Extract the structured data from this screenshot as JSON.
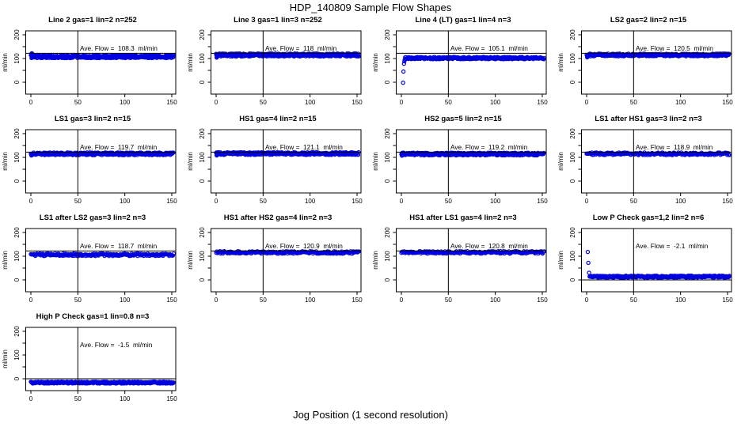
{
  "figure": {
    "title": "HDP_140809  Sample Flow Shapes",
    "xlabel": "Jog Position (1 second resolution)",
    "background": "#ffffff",
    "point_color": "#0000e0",
    "line_color": "#000000"
  },
  "axes": {
    "x_ticks": [
      0,
      50,
      100,
      150
    ],
    "y_ticks": [
      0,
      50,
      100,
      150,
      200
    ],
    "y_tick_labels": [
      0,
      100,
      200
    ],
    "xlim": [
      0,
      155
    ],
    "ylim": [
      -50,
      216
    ],
    "ylabel": "ml/min",
    "vline_x": 50
  },
  "chart_data": [
    {
      "type": "scatter",
      "title": "Line 2 gas=1 lin=2 n=252",
      "annotation": "Ave. Flow =  108.3  ml/min",
      "ave_flow": 108.3,
      "n": 252,
      "hline": 122,
      "band": {
        "x_start": 0,
        "x_end": 152,
        "center": 108,
        "step": 0.35,
        "jitter": 1.9
      },
      "extra_points": [
        [
          0.6,
          119
        ],
        [
          1.0,
          122
        ],
        [
          1.4,
          120
        ],
        [
          1.8,
          117
        ],
        [
          2.2,
          114
        ]
      ]
    },
    {
      "type": "scatter",
      "title": "Line 3 gas=1 lin=3 n=252",
      "annotation": "Ave. Flow =  118  ml/min",
      "ave_flow": 118,
      "n": 252,
      "hline": 122,
      "band": {
        "x_start": 0,
        "x_end": 152,
        "center": 115,
        "step": 0.35,
        "jitter": 1.9
      },
      "extra_points": [
        [
          0.6,
          104
        ],
        [
          1.0,
          107
        ],
        [
          1.5,
          110
        ],
        [
          2.0,
          112
        ]
      ]
    },
    {
      "type": "scatter",
      "title": "Line 4 (LT) gas=1 lin=4 n=3",
      "annotation": "Ave. Flow =  105.1  ml/min",
      "ave_flow": 105.1,
      "n": 3,
      "hline": 122,
      "band": {
        "x_start": 4,
        "x_end": 152,
        "center": 102,
        "step": 0.5,
        "jitter": 1.5
      },
      "extra_points": [
        [
          1.8,
          -2
        ],
        [
          2.2,
          45
        ],
        [
          2.8,
          78
        ],
        [
          3.2,
          88
        ],
        [
          3.6,
          95
        ]
      ]
    },
    {
      "type": "scatter",
      "title": "LS2 gas=2 lin=2 n=15",
      "annotation": "Ave. Flow =  120.5  ml/min",
      "ave_flow": 120.5,
      "n": 15,
      "hline": 122,
      "band": {
        "x_start": 0,
        "x_end": 152,
        "center": 115,
        "step": 0.45,
        "jitter": 1.7
      },
      "extra_points": [
        [
          0.6,
          105
        ],
        [
          1.0,
          109
        ],
        [
          1.5,
          112
        ]
      ]
    },
    {
      "type": "scatter",
      "title": "LS1 gas=3 lin=2 n=15",
      "annotation": "Ave. Flow =  119.7  ml/min",
      "ave_flow": 119.7,
      "n": 15,
      "hline": 122,
      "band": {
        "x_start": 0,
        "x_end": 152,
        "center": 115,
        "step": 0.45,
        "jitter": 1.7
      },
      "extra_points": [
        [
          0.6,
          108
        ],
        [
          1.2,
          111
        ]
      ]
    },
    {
      "type": "scatter",
      "title": "HS1 gas=4 lin=2 n=15",
      "annotation": "Ave. Flow =  121.1  ml/min",
      "ave_flow": 121.1,
      "n": 15,
      "hline": 122,
      "band": {
        "x_start": 0,
        "x_end": 152,
        "center": 116,
        "step": 0.45,
        "jitter": 1.7
      },
      "extra_points": [
        [
          0.6,
          108
        ],
        [
          1.2,
          112
        ]
      ]
    },
    {
      "type": "scatter",
      "title": "HS2 gas=5 lin=2 n=15",
      "annotation": "Ave. Flow =  119.2  ml/min",
      "ave_flow": 119.2,
      "n": 15,
      "hline": 122,
      "band": {
        "x_start": 0,
        "x_end": 152,
        "center": 114,
        "step": 0.45,
        "jitter": 1.7
      },
      "extra_points": [
        [
          0.6,
          107
        ],
        [
          1.2,
          111
        ]
      ]
    },
    {
      "type": "scatter",
      "title": "LS1 after HS1 gas=3 lin=2 n=3",
      "annotation": "Ave. Flow =  118.9  ml/min",
      "ave_flow": 118.9,
      "n": 3,
      "hline": 122,
      "band": {
        "x_start": 0,
        "x_end": 152,
        "center": 115,
        "step": 0.8,
        "jitter": 1.6
      },
      "extra_points": []
    },
    {
      "type": "scatter",
      "title": "LS1 after LS2 gas=3 lin=2 n=3",
      "annotation": "Ave. Flow =  118.7  ml/min",
      "ave_flow": 118.7,
      "n": 3,
      "hline": 122,
      "band": {
        "x_start": 0,
        "x_end": 152,
        "center": 106,
        "step": 0.8,
        "jitter": 1.6
      },
      "extra_points": []
    },
    {
      "type": "scatter",
      "title": "HS1 after HS2 gas=4 lin=2 n=3",
      "annotation": "Ave. Flow =  120.9  ml/min",
      "ave_flow": 120.9,
      "n": 3,
      "hline": 122,
      "band": {
        "x_start": 0,
        "x_end": 152,
        "center": 116,
        "step": 0.8,
        "jitter": 1.6
      },
      "extra_points": []
    },
    {
      "type": "scatter",
      "title": "HS1 after LS1 gas=4 lin=2 n=3",
      "annotation": "Ave. Flow =  120.8  ml/min",
      "ave_flow": 120.8,
      "n": 3,
      "hline": 122,
      "band": {
        "x_start": 0,
        "x_end": 152,
        "center": 116,
        "step": 0.8,
        "jitter": 1.6
      },
      "extra_points": []
    },
    {
      "type": "scatter",
      "title": "Low P Check gas=1,2 lin=2 n=6",
      "annotation": "Ave. Flow =  -2.1  ml/min",
      "ave_flow": -2.1,
      "n": 6,
      "hline": 0,
      "band": {
        "x_start": 4,
        "x_end": 152,
        "center": 14,
        "step": 0.5,
        "jitter": 1.2
      },
      "extra_points": [
        [
          1.2,
          118
        ],
        [
          1.8,
          72
        ],
        [
          2.6,
          30
        ],
        [
          3.2,
          14
        ]
      ]
    },
    {
      "type": "scatter",
      "title": "High P Check gas=1 lin=0.8 n=3",
      "annotation": "Ave. Flow =  -1.5  ml/min",
      "ave_flow": -1.5,
      "n": 3,
      "hline": 0,
      "band": {
        "x_start": 0,
        "x_end": 152,
        "center": -16,
        "step": 0.5,
        "jitter": 1.2
      },
      "extra_points": []
    }
  ]
}
